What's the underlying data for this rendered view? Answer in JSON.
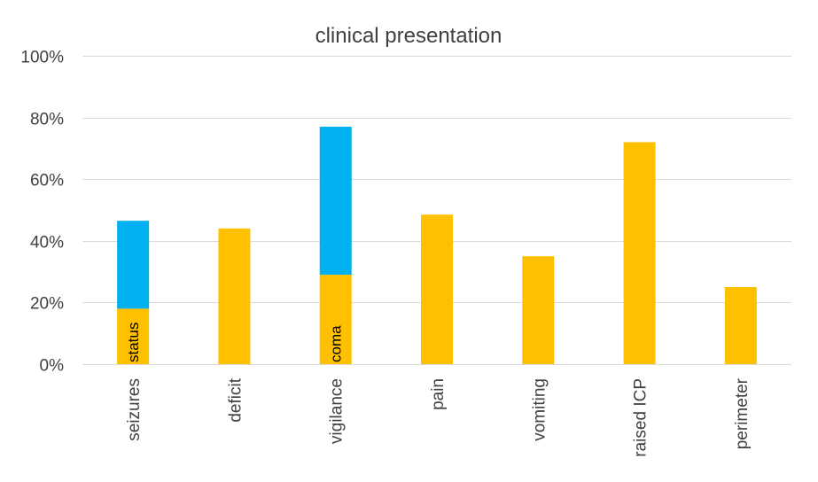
{
  "chart_data": {
    "type": "bar",
    "stacked": true,
    "title": "clinical presentation",
    "xlabel": "",
    "ylabel": "",
    "ylim": [
      0,
      100
    ],
    "y_ticks": [
      "0%",
      "20%",
      "40%",
      "60%",
      "80%",
      "100%"
    ],
    "y_tick_values": [
      0,
      20,
      40,
      60,
      80,
      100
    ],
    "grid": true,
    "categories": [
      "seizures",
      "deficit",
      "vigilance",
      "pain",
      "vomiting",
      "raised ICP",
      "perimeter"
    ],
    "series": [
      {
        "name": "base",
        "color": "#FFC000",
        "values": [
          18,
          44,
          29,
          48.5,
          35,
          72,
          25
        ]
      },
      {
        "name": "additional",
        "color": "#00B0F0",
        "values": [
          28.5,
          0,
          48,
          0,
          0,
          0,
          0
        ]
      }
    ],
    "annotations": [
      {
        "category": "seizures",
        "series": "base",
        "text": "status"
      },
      {
        "category": "vigilance",
        "series": "base",
        "text": "coma"
      }
    ]
  }
}
